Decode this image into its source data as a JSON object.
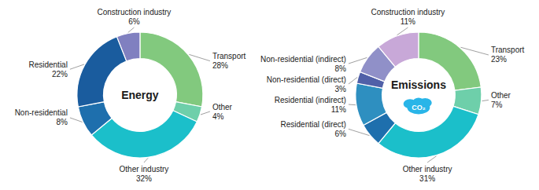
{
  "chart_data": [
    {
      "type": "donut",
      "title": "Energy",
      "categories": [
        "Transport",
        "Other",
        "Other industry",
        "Non-residential",
        "Residential",
        "Construction industry"
      ],
      "values": [
        28,
        4,
        32,
        8,
        22,
        6
      ],
      "value_labels": [
        "28%",
        "4%",
        "32%",
        "8%",
        "22%",
        "6%"
      ],
      "colors": [
        "#82C97E",
        "#6ECFAA",
        "#1BBFCA",
        "#1E6FAD",
        "#1A5C9E",
        "#8080C0"
      ],
      "data_labels": true
    },
    {
      "type": "donut",
      "title": "Emissions",
      "categories": [
        "Transport",
        "Other",
        "Other industry",
        "Residential (direct)",
        "Residential (indirect)",
        "Non-residential (direct)",
        "Non-residential (indirect)",
        "Construction industry"
      ],
      "values": [
        23,
        7,
        31,
        6,
        11,
        3,
        8,
        11
      ],
      "value_labels": [
        "23%",
        "7%",
        "31%",
        "6%",
        "11%",
        "3%",
        "8%",
        "11%"
      ],
      "colors": [
        "#82C97E",
        "#6ECFAA",
        "#1BBFCA",
        "#1E6FAD",
        "#2E8FC0",
        "#5060A8",
        "#9090C8",
        "#C8A8D8"
      ],
      "data_labels": true,
      "annotations": [
        "CO₂"
      ]
    }
  ]
}
